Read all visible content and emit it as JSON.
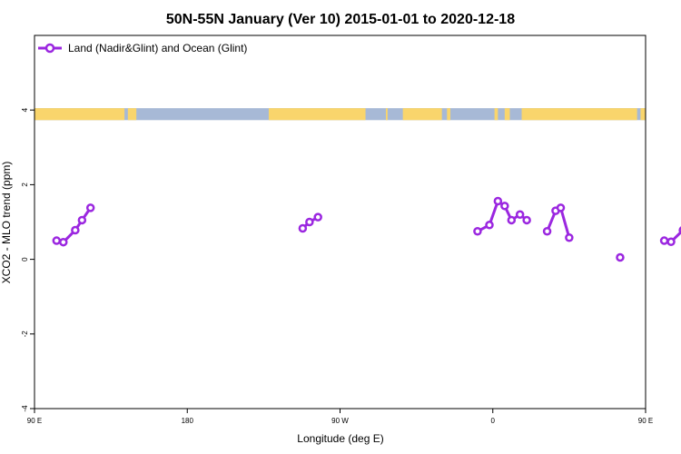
{
  "chart_data": {
    "type": "line",
    "title": "50N-55N January (Ver 10)   2015-01-01 to 2020-12-18",
    "xlabel": "Longitude (deg E)",
    "ylabel": "XCO2 - MLO trend (ppm)",
    "xlim": [
      90,
      450
    ],
    "ylim": [
      -4,
      6
    ],
    "x_ticks": [
      {
        "value": 90,
        "label": "90 E"
      },
      {
        "value": 180,
        "label": "180"
      },
      {
        "value": 270,
        "label": "90 W"
      },
      {
        "value": 360,
        "label": "0"
      },
      {
        "value": 450,
        "label": "90 E"
      },
      {
        "value": 540,
        "label": "180"
      }
    ],
    "y_ticks": [
      {
        "value": -4,
        "label": "-4"
      },
      {
        "value": -2,
        "label": "-2"
      },
      {
        "value": 0,
        "label": "0"
      },
      {
        "value": 2,
        "label": "2"
      },
      {
        "value": 4,
        "label": "4"
      }
    ],
    "legend": {
      "position": "top-left",
      "entries": [
        "Land (Nadir&Glint) and Ocean (Glint)"
      ]
    },
    "colors": {
      "series": "#9b27e0",
      "land": "#f9d56c",
      "ocean": "#a7b9d6"
    },
    "land_ocean_strip": {
      "y_range": [
        3.73,
        4.05
      ],
      "land_intervals": [
        [
          90,
          143
        ],
        [
          145,
          150
        ],
        [
          228,
          285
        ],
        [
          297,
          298
        ],
        [
          307,
          330
        ],
        [
          333,
          335
        ],
        [
          361,
          363
        ],
        [
          367,
          370
        ],
        [
          377,
          445
        ],
        [
          447,
          455
        ],
        [
          500,
          516
        ],
        [
          518,
          540
        ]
      ]
    },
    "series": [
      {
        "name": "Land (Nadir&Glint) and Ocean (Glint)",
        "segments": [
          [
            [
              103,
              0.5
            ],
            [
              107,
              0.46
            ],
            [
              114,
              0.78
            ],
            [
              118,
              1.05
            ],
            [
              123,
              1.38
            ]
          ],
          [
            [
              248,
              0.83
            ],
            [
              252,
              1.0
            ],
            [
              257,
              1.13
            ]
          ],
          [
            [
              351,
              0.75
            ],
            [
              358,
              0.92
            ],
            [
              363,
              1.56
            ],
            [
              367,
              1.43
            ],
            [
              371,
              1.05
            ],
            [
              376,
              1.2
            ],
            [
              380,
              1.05
            ]
          ],
          [
            [
              392,
              0.75
            ],
            [
              397,
              1.3
            ],
            [
              400,
              1.38
            ],
            [
              405,
              0.58
            ]
          ],
          [
            [
              435,
              0.05
            ]
          ],
          [
            [
              461,
              0.5
            ],
            [
              465,
              0.47
            ],
            [
              472,
              0.78
            ],
            [
              476,
              1.05
            ],
            [
              481,
              1.38
            ]
          ]
        ]
      }
    ]
  }
}
